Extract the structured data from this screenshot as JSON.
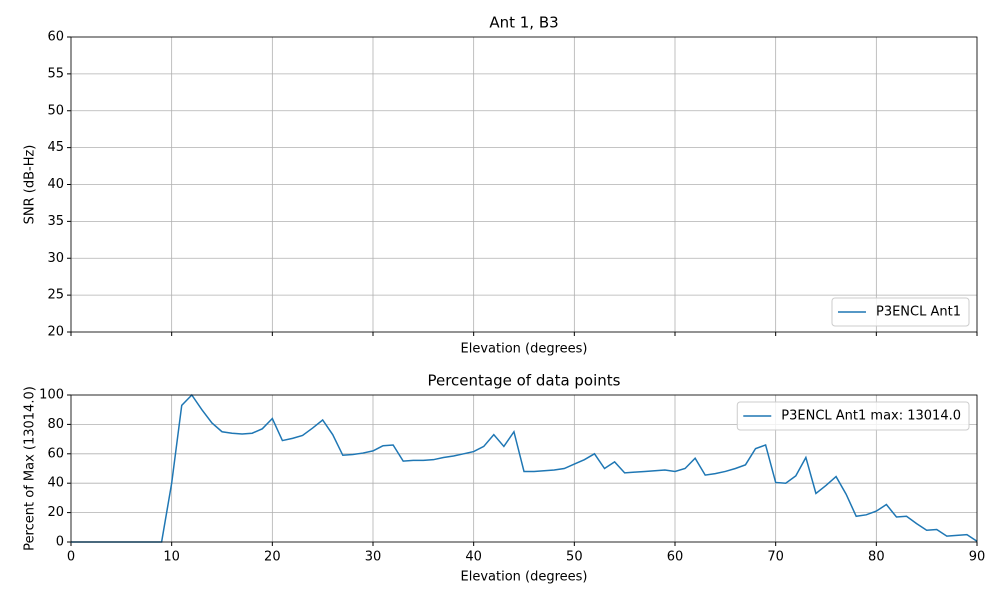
{
  "chart_data": [
    {
      "type": "line",
      "title": "Ant 1, B3",
      "xlabel": "Elevation (degrees)",
      "ylabel": "SNR (dB-Hz)",
      "xlim": [
        0,
        90
      ],
      "xticks": [
        0,
        10,
        20,
        30,
        40,
        50,
        60,
        70,
        80,
        90
      ],
      "xtick_labels": false,
      "ylim": [
        20,
        60
      ],
      "yticks": [
        20,
        25,
        30,
        35,
        40,
        45,
        50,
        55,
        60
      ],
      "grid": true,
      "legend": "lower right",
      "series": [
        {
          "name": "P3ENCL Ant1",
          "color": "#1f77b4"
        }
      ]
    },
    {
      "type": "line",
      "title": "Percentage of data points",
      "xlabel": "Elevation (degrees)",
      "ylabel": "Percent of Max (13014.0)",
      "xlim": [
        0,
        90
      ],
      "xticks": [
        0,
        10,
        20,
        30,
        40,
        50,
        60,
        70,
        80,
        90
      ],
      "xtick_labels": true,
      "ylim": [
        0,
        100
      ],
      "yticks": [
        0,
        20,
        40,
        60,
        80,
        100
      ],
      "grid": true,
      "legend": "upper right",
      "series": [
        {
          "name": "P3ENCL Ant1 max: 13014.0",
          "color": "#1f77b4",
          "x": [
            0,
            1,
            2,
            3,
            4,
            5,
            6,
            7,
            8,
            9,
            10,
            11,
            12,
            13,
            14,
            15,
            16,
            17,
            18,
            19,
            20,
            21,
            22,
            23,
            24,
            25,
            26,
            27,
            28,
            29,
            30,
            31,
            32,
            33,
            34,
            35,
            36,
            37,
            38,
            39,
            40,
            41,
            42,
            43,
            44,
            45,
            46,
            47,
            48,
            49,
            50,
            51,
            52,
            53,
            54,
            55,
            56,
            57,
            58,
            59,
            60,
            61,
            62,
            63,
            64,
            65,
            66,
            67,
            68,
            69,
            70,
            71,
            72,
            73,
            74,
            75,
            76,
            77,
            78,
            79,
            80,
            81,
            82,
            83,
            84,
            85,
            86,
            87,
            88,
            89,
            90
          ],
          "values": [
            0,
            0,
            0,
            0,
            0,
            0,
            0,
            0,
            0,
            0,
            40,
            93,
            100,
            90,
            81,
            75,
            74,
            73.5,
            74,
            77,
            84,
            69,
            70.5,
            72.5,
            77.5,
            83,
            73,
            59,
            59.5,
            60.5,
            62,
            65.5,
            66,
            55,
            55.5,
            55.5,
            56,
            57.5,
            58.5,
            60,
            61.5,
            65,
            73,
            65,
            75,
            48,
            48,
            48.5,
            49,
            50,
            53,
            56,
            60,
            50,
            54.5,
            47,
            47.5,
            48,
            48.5,
            49,
            48,
            50,
            57,
            45.5,
            46.5,
            48,
            50,
            52.5,
            63.5,
            66,
            40.5,
            40,
            45,
            57.5,
            33,
            38.5,
            44.5,
            32.5,
            17.5,
            18.5,
            21,
            25.5,
            17,
            17.5,
            12.5,
            8,
            8.5,
            4,
            4.5,
            5,
            0.5
          ]
        }
      ]
    }
  ]
}
